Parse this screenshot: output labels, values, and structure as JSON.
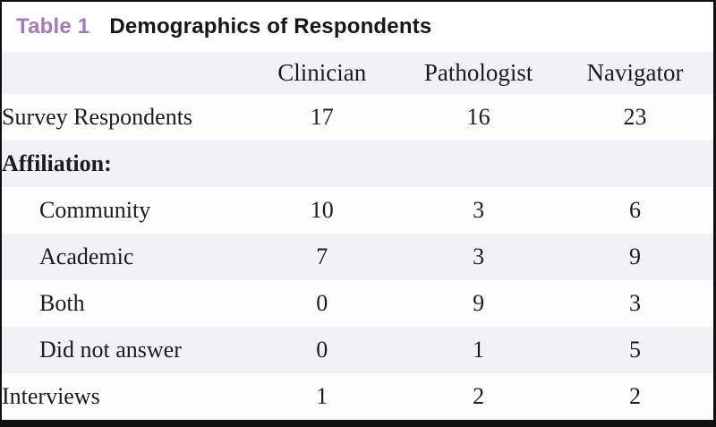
{
  "title": {
    "label": "Table 1",
    "text": "Demographics of Respondents"
  },
  "colors": {
    "accent_purple": "#a478ba",
    "stripe": "#f2f1f6",
    "frame_border": "#101010",
    "body_text": "#1b1b1b"
  },
  "chart_data": {
    "type": "table",
    "title": "Table 1 Demographics of Respondents",
    "columns": [
      "",
      "Clinician",
      "Pathologist",
      "Navigator"
    ],
    "rows": [
      {
        "label": "Survey Respondents",
        "indent": false,
        "bold": false,
        "values": [
          "17",
          "16",
          "23"
        ]
      },
      {
        "label": "Affiliation:",
        "indent": false,
        "bold": true,
        "values": [
          "",
          "",
          ""
        ]
      },
      {
        "label": "Community",
        "indent": true,
        "bold": false,
        "values": [
          "10",
          "3",
          "6"
        ]
      },
      {
        "label": "Academic",
        "indent": true,
        "bold": false,
        "values": [
          "7",
          "3",
          "9"
        ]
      },
      {
        "label": "Both",
        "indent": true,
        "bold": false,
        "values": [
          "0",
          "9",
          "3"
        ]
      },
      {
        "label": "Did not answer",
        "indent": true,
        "bold": false,
        "values": [
          "0",
          "1",
          "5"
        ]
      },
      {
        "label": "Interviews",
        "indent": false,
        "bold": false,
        "values": [
          "1",
          "2",
          "2"
        ]
      }
    ]
  }
}
